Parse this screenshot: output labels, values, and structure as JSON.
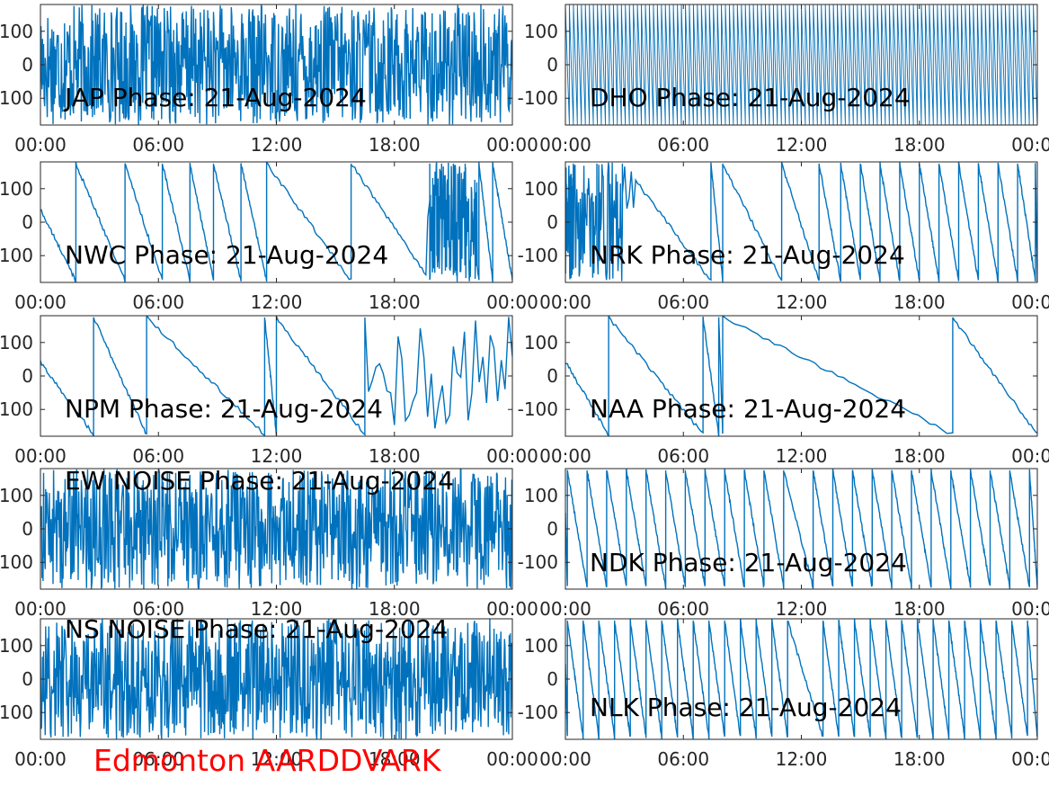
{
  "figure": {
    "footer": "Edmonton AARDDVARK",
    "series_color": "#0072BD",
    "footer_color": "#ff0000"
  },
  "chart_data": [
    {
      "type": "line",
      "title": "JAP Phase: 21-Aug-2024",
      "pattern": "noise",
      "x_ticks": [
        "00:00",
        "06:00",
        "12:00",
        "18:00",
        "00:00"
      ],
      "y_ticks": [
        "100",
        "0",
        "100"
      ],
      "ylim": [
        -180,
        180
      ],
      "xlim": [
        "00:00",
        "24:00"
      ],
      "grid": false
    },
    {
      "type": "line",
      "title": "DHO Phase: 21-Aug-2024",
      "pattern": "dense-ramps",
      "x_ticks": [
        "00:00",
        "06:00",
        "12:00",
        "18:00",
        "00:00"
      ],
      "y_ticks": [
        "100",
        "0",
        "-100"
      ],
      "ylim": [
        -180,
        180
      ],
      "xlim": [
        "00:00",
        "24:00"
      ],
      "grid": false
    },
    {
      "type": "line",
      "title": "NWC Phase: 21-Aug-2024",
      "pattern": "wraps",
      "x_ticks": [
        "00:00",
        "06:00",
        "12:00",
        "18:00",
        "00:00"
      ],
      "y_ticks": [
        "100",
        "0",
        "100"
      ],
      "ylim": [
        -180,
        180
      ],
      "xlim": [
        "00:00",
        "24:00"
      ],
      "grid": false,
      "wrap_hours": [
        1.8,
        4.3,
        6.2,
        7.6,
        8.8,
        10.2,
        11.5,
        15.8,
        19.8,
        20.4,
        21.0,
        21.6,
        22.3,
        23.0
      ],
      "noisy_hours": [
        [
          19.7,
          22.2
        ]
      ]
    },
    {
      "type": "line",
      "title": "NRK Phase: 21-Aug-2024",
      "pattern": "wraps",
      "x_ticks": [
        "00:00",
        "06:00",
        "12:00",
        "18:00",
        "00:00"
      ],
      "y_ticks": [
        "100",
        "0",
        "-100"
      ],
      "ylim": [
        -180,
        180
      ],
      "xlim": [
        "00:00",
        "24:00"
      ],
      "grid": false,
      "wrap_hours": [
        0.4,
        1.6,
        2.9,
        7.4,
        8.0,
        11.0,
        12.9,
        14.0,
        15.0,
        16.0,
        17.0,
        18.0,
        19.0,
        20.0,
        21.0,
        22.0,
        23.0,
        23.9
      ],
      "noisy_hours": [
        [
          0,
          3.5
        ]
      ]
    },
    {
      "type": "line",
      "title": "NPM Phase: 21-Aug-2024",
      "pattern": "wraps",
      "x_ticks": [
        "00:00",
        "06:00",
        "12:00",
        "18:00",
        "00:00"
      ],
      "y_ticks": [
        "100",
        "0",
        "100"
      ],
      "ylim": [
        -180,
        180
      ],
      "xlim": [
        "00:00",
        "24:00"
      ],
      "grid": false,
      "wrap_hours": [
        2.7,
        5.4,
        11.4,
        12.0,
        16.5
      ],
      "noisy_hours": [
        [
          16.6,
          24
        ]
      ]
    },
    {
      "type": "line",
      "title": "NAA Phase: 21-Aug-2024",
      "pattern": "wraps",
      "x_ticks": [
        "00:00",
        "06:00",
        "12:00",
        "18:00",
        "00:00"
      ],
      "y_ticks": [
        "100",
        "0",
        "-100"
      ],
      "ylim": [
        -180,
        180
      ],
      "xlim": [
        "00:00",
        "24:00"
      ],
      "grid": false,
      "wrap_hours": [
        2.2,
        7.0,
        7.8,
        8.0,
        19.7
      ],
      "noisy_hours": []
    },
    {
      "type": "line",
      "title": "EW NOISE Phase: 21-Aug-2024",
      "pattern": "noise",
      "x_ticks": [
        "00:00",
        "06:00",
        "12:00",
        "18:00",
        "00:00"
      ],
      "y_ticks": [
        "100",
        "0",
        "100"
      ],
      "ylim": [
        -180,
        180
      ],
      "xlim": [
        "00:00",
        "24:00"
      ],
      "grid": false
    },
    {
      "type": "line",
      "title": "NDK Phase: 21-Aug-2024",
      "pattern": "wraps",
      "x_ticks": [
        "00:00",
        "06:00",
        "12:00",
        "18:00",
        "00:00"
      ],
      "y_ticks": [
        "100",
        "0",
        "-100"
      ],
      "ylim": [
        -180,
        180
      ],
      "xlim": [
        "00:00",
        "24:00"
      ],
      "grid": false,
      "wrap_hours": [
        0.1,
        1.1,
        2.1,
        3.1,
        4.1,
        5.1,
        6.1,
        7.1,
        8.1,
        9.1,
        10.1,
        11.1,
        12.6,
        13.6,
        14.6,
        15.6,
        16.6,
        17.6,
        18.6,
        19.6,
        20.6,
        21.6,
        22.6,
        23.6
      ],
      "noisy_hours": []
    },
    {
      "type": "line",
      "title": "NS NOISE Phase: 21-Aug-2024",
      "pattern": "noise",
      "x_ticks": [
        "00:00",
        "06:00",
        "12:00",
        "18:00",
        "00:00"
      ],
      "y_ticks": [
        "100",
        "0",
        "100"
      ],
      "ylim": [
        -180,
        180
      ],
      "xlim": [
        "00:00",
        "24:00"
      ],
      "grid": false
    },
    {
      "type": "line",
      "title": "NLK Phase: 21-Aug-2024",
      "pattern": "wraps",
      "x_ticks": [
        "00:00",
        "06:00",
        "12:00",
        "18:00",
        "00:00"
      ],
      "y_ticks": [
        "100",
        "0",
        "-100"
      ],
      "ylim": [
        -180,
        180
      ],
      "xlim": [
        "00:00",
        "24:00"
      ],
      "grid": false,
      "wrap_hours": [
        0.1,
        0.9,
        1.7,
        2.5,
        3.3,
        4.1,
        4.9,
        5.7,
        6.5,
        7.3,
        8.1,
        8.9,
        9.7,
        10.5,
        11.3,
        13.1,
        13.9,
        14.7,
        15.5,
        16.3,
        17.1,
        17.9,
        18.7,
        19.5,
        20.3,
        21.1,
        21.9,
        22.7,
        23.5
      ],
      "noisy_hours": []
    }
  ]
}
